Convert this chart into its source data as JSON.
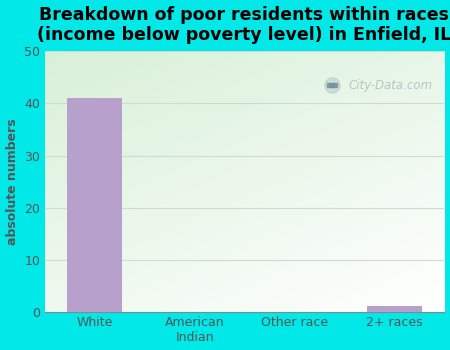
{
  "title": "Breakdown of poor residents within races\n(income below poverty level) in Enfield, IL",
  "categories": [
    "White",
    "American\nIndian",
    "Other race",
    "2+ races"
  ],
  "values": [
    41,
    0,
    0,
    1
  ],
  "bar_color": "#b8a0cc",
  "ylabel": "absolute numbers",
  "ylim": [
    0,
    50
  ],
  "yticks": [
    0,
    10,
    20,
    30,
    40,
    50
  ],
  "background_color": "#00e8e8",
  "plot_bg_topleft": "#d8f0d8",
  "plot_bg_bottomright": "#ffffff",
  "title_fontsize": 12.5,
  "axis_label_fontsize": 9,
  "tick_fontsize": 9,
  "ylabel_color": "#555555",
  "tick_color": "#555555",
  "watermark_text": "City-Data.com",
  "bar_width": 0.55,
  "grid_color": "#ccddcc"
}
